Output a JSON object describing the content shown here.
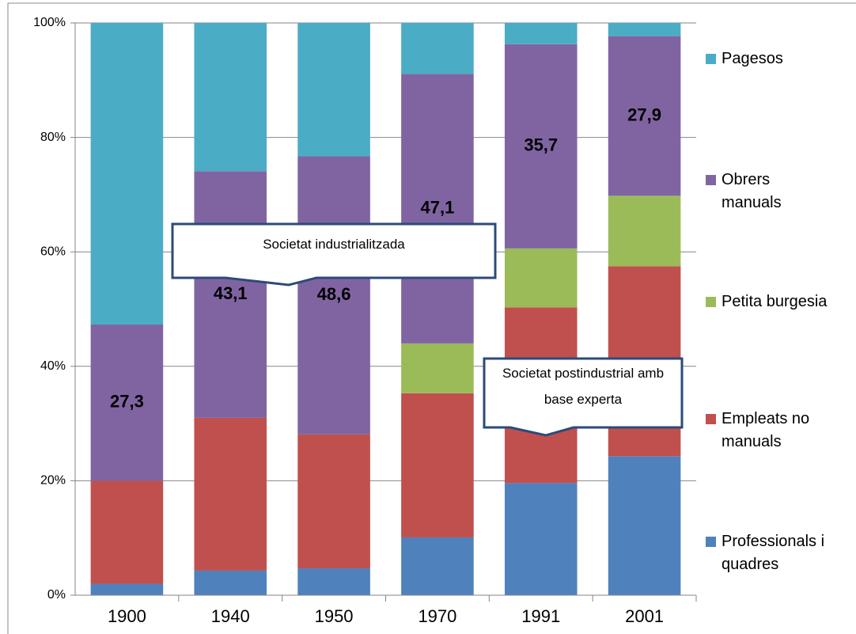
{
  "chart_data": {
    "type": "stacked_bar",
    "categories": [
      "1900",
      "1940",
      "1950",
      "1970",
      "1991",
      "2001"
    ],
    "series": [
      {
        "name": "Professionals i quadres",
        "color": "#4f81bd",
        "values": [
          2,
          4.3,
          4.7,
          10.1,
          19.6,
          24.3
        ]
      },
      {
        "name": "Empleats no manuals",
        "color": "#c0504d",
        "values": [
          18,
          26.7,
          23.4,
          25.2,
          30.7,
          33.2
        ]
      },
      {
        "name": "Petita burgesia",
        "color": "#9bbb59",
        "values": [
          0,
          0,
          0,
          8.7,
          10.3,
          12.3
        ]
      },
      {
        "name": "Obrers manuals",
        "color": "#8064a2",
        "values": [
          27.3,
          43.1,
          48.6,
          47.1,
          35.7,
          27.9
        ],
        "value_labels": [
          "27,3",
          "43,1",
          "48,6",
          "47,1",
          "35,7",
          "27,9"
        ]
      },
      {
        "name": "Pagesos",
        "color": "#4bacc6",
        "values": [
          52.7,
          25.9,
          23.3,
          8.9,
          3.7,
          2.3
        ]
      }
    ],
    "ylim": [
      0,
      100
    ],
    "yticks": [
      {
        "value": 0,
        "label": "0%"
      },
      {
        "value": 20,
        "label": "20%"
      },
      {
        "value": 40,
        "label": "40%"
      },
      {
        "value": 60,
        "label": "60%"
      },
      {
        "value": 80,
        "label": "80%"
      },
      {
        "value": 100,
        "label": "100%"
      }
    ],
    "grid": true,
    "legend": "right",
    "annotations": [
      "Societat industrialitzada",
      "Societat postindustrial amb base experta"
    ]
  }
}
